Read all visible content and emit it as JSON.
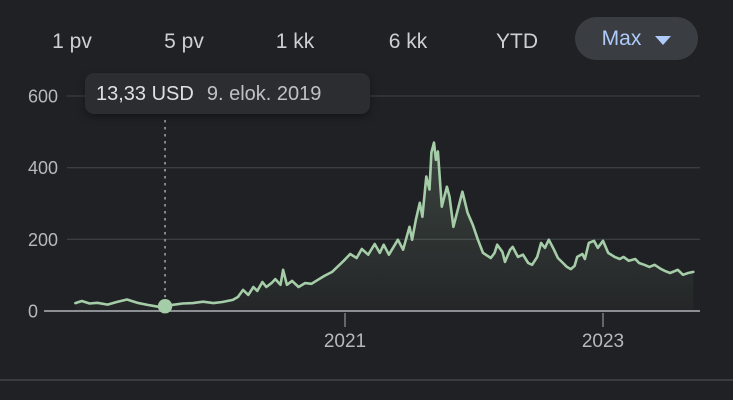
{
  "controls": {
    "ranges": [
      {
        "label": "1 pv"
      },
      {
        "label": "5 pv"
      },
      {
        "label": "1 kk"
      },
      {
        "label": "6 kk"
      },
      {
        "label": "YTD"
      }
    ],
    "max": {
      "label": "Max"
    }
  },
  "tooltip": {
    "price": "13,33 USD",
    "date": "9. elok. 2019"
  },
  "colors": {
    "background": "#202124",
    "line": "#a5cda8",
    "area_top": "rgba(165,205,168,0.20)",
    "area_bottom": "rgba(165,205,168,0.03)",
    "grid": "#3a3d41",
    "axis": "#8b8e92",
    "tick": "#63676b",
    "tick_label": "#b5b8bc",
    "marker_line": "#9aa0a6",
    "accent_blue": "#aecbfa"
  },
  "chart_data": {
    "type": "line",
    "title": "",
    "xlabel": "",
    "ylabel": "",
    "legend": false,
    "grid": true,
    "x_axis": {
      "ticks": [
        2021,
        2023
      ],
      "tick_labels": [
        "2021",
        "2023"
      ],
      "range": [
        2018.91,
        2023.72
      ]
    },
    "y_axis": {
      "ticks": [
        0,
        200,
        400,
        600
      ],
      "range": [
        0,
        600
      ],
      "unit": "USD"
    },
    "marker": {
      "t": 2019.605,
      "value": 13.33,
      "price_label": "13,33 USD",
      "date_label": "9. elok. 2019"
    },
    "series": [
      {
        "name": "price-usd",
        "points": [
          [
            2018.91,
            22
          ],
          [
            2018.96,
            28
          ],
          [
            2019.02,
            21
          ],
          [
            2019.08,
            23
          ],
          [
            2019.16,
            18
          ],
          [
            2019.23,
            25
          ],
          [
            2019.31,
            32
          ],
          [
            2019.39,
            23
          ],
          [
            2019.47,
            17
          ],
          [
            2019.55,
            12
          ],
          [
            2019.605,
            13.33
          ],
          [
            2019.66,
            17
          ],
          [
            2019.74,
            21
          ],
          [
            2019.82,
            22
          ],
          [
            2019.9,
            26
          ],
          [
            2019.98,
            22
          ],
          [
            2020.05,
            25
          ],
          [
            2020.13,
            31
          ],
          [
            2020.17,
            39
          ],
          [
            2020.21,
            59
          ],
          [
            2020.25,
            45
          ],
          [
            2020.29,
            67
          ],
          [
            2020.32,
            56
          ],
          [
            2020.36,
            81
          ],
          [
            2020.39,
            67
          ],
          [
            2020.43,
            78
          ],
          [
            2020.46,
            89
          ],
          [
            2020.5,
            73
          ],
          [
            2020.52,
            115
          ],
          [
            2020.55,
            73
          ],
          [
            2020.59,
            84
          ],
          [
            2020.64,
            67
          ],
          [
            2020.69,
            78
          ],
          [
            2020.74,
            76
          ],
          [
            2020.79,
            87
          ],
          [
            2020.84,
            98
          ],
          [
            2020.9,
            109
          ],
          [
            2020.94,
            123
          ],
          [
            2020.99,
            140
          ],
          [
            2021.04,
            159
          ],
          [
            2021.09,
            148
          ],
          [
            2021.13,
            173
          ],
          [
            2021.18,
            157
          ],
          [
            2021.23,
            187
          ],
          [
            2021.27,
            162
          ],
          [
            2021.3,
            185
          ],
          [
            2021.34,
            157
          ],
          [
            2021.41,
            199
          ],
          [
            2021.45,
            171
          ],
          [
            2021.5,
            235
          ],
          [
            2021.52,
            199
          ],
          [
            2021.55,
            255
          ],
          [
            2021.58,
            302
          ],
          [
            2021.6,
            263
          ],
          [
            2021.63,
            375
          ],
          [
            2021.655,
            339
          ],
          [
            2021.67,
            442
          ],
          [
            2021.69,
            470
          ],
          [
            2021.705,
            422
          ],
          [
            2021.72,
            445
          ],
          [
            2021.75,
            291
          ],
          [
            2021.79,
            347
          ],
          [
            2021.81,
            319
          ],
          [
            2021.84,
            235
          ],
          [
            2021.91,
            333
          ],
          [
            2021.95,
            274
          ],
          [
            2021.99,
            241
          ],
          [
            2022.03,
            199
          ],
          [
            2022.07,
            162
          ],
          [
            2022.13,
            148
          ],
          [
            2022.16,
            162
          ],
          [
            2022.18,
            185
          ],
          [
            2022.22,
            165
          ],
          [
            2022.24,
            137
          ],
          [
            2022.28,
            171
          ],
          [
            2022.3,
            179
          ],
          [
            2022.34,
            151
          ],
          [
            2022.38,
            157
          ],
          [
            2022.42,
            134
          ],
          [
            2022.45,
            129
          ],
          [
            2022.49,
            151
          ],
          [
            2022.52,
            190
          ],
          [
            2022.55,
            176
          ],
          [
            2022.58,
            199
          ],
          [
            2022.62,
            171
          ],
          [
            2022.65,
            148
          ],
          [
            2022.69,
            134
          ],
          [
            2022.72,
            123
          ],
          [
            2022.75,
            117
          ],
          [
            2022.78,
            126
          ],
          [
            2022.8,
            151
          ],
          [
            2022.84,
            159
          ],
          [
            2022.86,
            145
          ],
          [
            2022.89,
            190
          ],
          [
            2022.93,
            196
          ],
          [
            2022.96,
            176
          ],
          [
            2023.0,
            196
          ],
          [
            2023.04,
            162
          ],
          [
            2023.09,
            151
          ],
          [
            2023.13,
            145
          ],
          [
            2023.16,
            151
          ],
          [
            2023.2,
            140
          ],
          [
            2023.25,
            145
          ],
          [
            2023.28,
            134
          ],
          [
            2023.32,
            129
          ],
          [
            2023.36,
            123
          ],
          [
            2023.4,
            129
          ],
          [
            2023.45,
            117
          ],
          [
            2023.48,
            112
          ],
          [
            2023.52,
            106
          ],
          [
            2023.58,
            115
          ],
          [
            2023.62,
            101
          ],
          [
            2023.66,
            106
          ],
          [
            2023.7,
            109
          ]
        ]
      }
    ]
  }
}
